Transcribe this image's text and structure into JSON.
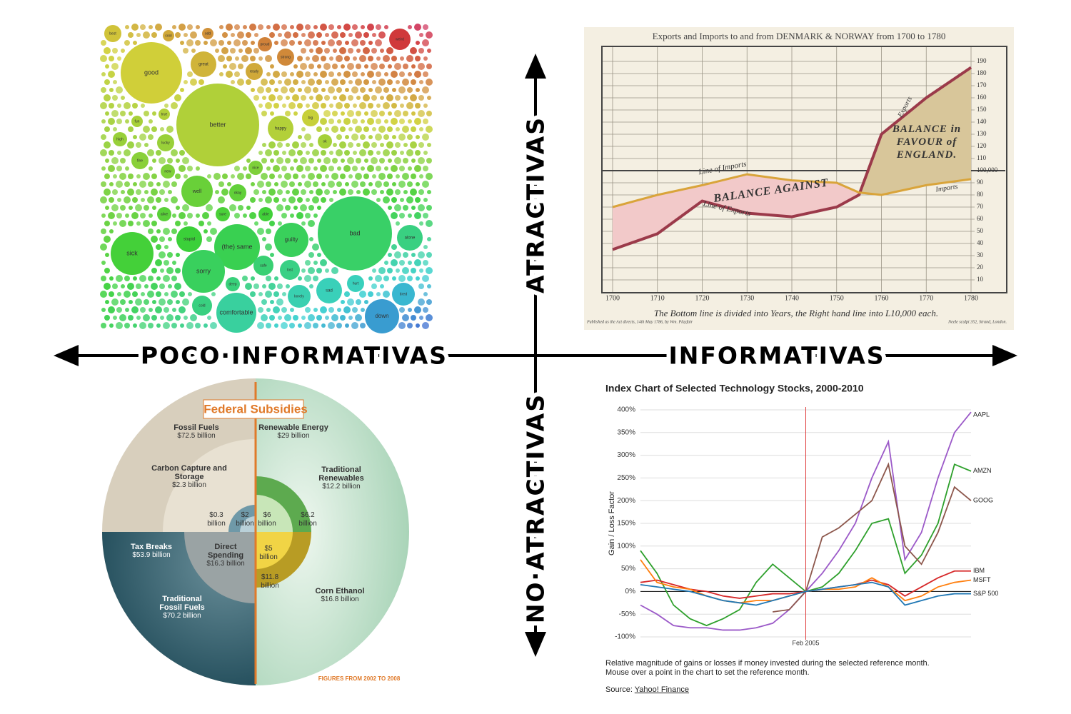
{
  "quadrant": {
    "x_left": "POCO·INFORMATIVAS",
    "x_right": "INFORMATIVAS",
    "y_top": "ATRACTIVAS",
    "y_bottom": "NO·ATRACTIVAS"
  },
  "bubble_chart": {
    "bubbles": [
      {
        "label": "best",
        "size": 36
      },
      {
        "label": "cool",
        "size": 16
      },
      {
        "label": "odd",
        "size": 16
      },
      {
        "label": "good",
        "size": 462
      },
      {
        "label": "great",
        "size": 81
      },
      {
        "label": "proud",
        "size": 25
      },
      {
        "label": "strong",
        "size": 36
      },
      {
        "label": "weird",
        "size": 56
      },
      {
        "label": "better",
        "size": 841
      },
      {
        "label": "ready",
        "size": 36
      },
      {
        "label": "happy",
        "size": 81
      },
      {
        "label": "big",
        "size": 36
      },
      {
        "label": "ok",
        "size": 25
      },
      {
        "label": "true",
        "size": 16
      },
      {
        "label": "fun",
        "size": 16
      },
      {
        "label": "high",
        "size": 25
      },
      {
        "label": "lucky",
        "size": 36
      },
      {
        "label": "fine",
        "size": 36
      },
      {
        "label": "new",
        "size": 25
      },
      {
        "label": "nice",
        "size": 25
      },
      {
        "label": "well",
        "size": 121
      },
      {
        "label": "okay",
        "size": 36
      },
      {
        "label": "sure",
        "size": 25
      },
      {
        "label": "able",
        "size": 25
      },
      {
        "label": "alive",
        "size": 25
      },
      {
        "label": "stupid",
        "size": 81
      },
      {
        "label": "(the) same",
        "size": 256
      },
      {
        "label": "sorry",
        "size": 225
      },
      {
        "label": "guilty",
        "size": 144
      },
      {
        "label": "bad",
        "size": 676
      },
      {
        "label": "sick",
        "size": 225
      },
      {
        "label": "alone",
        "size": 81
      },
      {
        "label": "safe",
        "size": 49
      },
      {
        "label": "lost",
        "size": 49
      },
      {
        "label": "deep",
        "size": 25
      },
      {
        "label": "hurt",
        "size": 36
      },
      {
        "label": "cold",
        "size": 49
      },
      {
        "label": "comfortable",
        "size": 196
      },
      {
        "label": "lonely",
        "size": 64
      },
      {
        "label": "sad",
        "size": 81
      },
      {
        "label": "tired",
        "size": 64
      },
      {
        "label": "down",
        "size": 144
      }
    ]
  },
  "playfair_chart": {
    "type": "line",
    "title": "Exports and Imports to and from DENMARK & NORWAY from 1700 to 1780",
    "x": [
      1700,
      1710,
      1720,
      1730,
      1740,
      1750,
      1755,
      1760,
      1770,
      1780
    ],
    "series": [
      {
        "name": "Exports",
        "color": "#9b3a4a",
        "values": [
          35,
          48,
          75,
          65,
          62,
          70,
          80,
          130,
          160,
          185
        ]
      },
      {
        "name": "Imports",
        "color": "#d9a43a",
        "values": [
          70,
          80,
          88,
          97,
          92,
          90,
          82,
          80,
          88,
          93
        ]
      }
    ],
    "xlim": [
      1700,
      1780
    ],
    "xticks": [
      1700,
      1710,
      1720,
      1730,
      1740,
      1750,
      1760,
      1770,
      1780
    ],
    "ylim": [
      0,
      200
    ],
    "yticks": [
      10,
      20,
      30,
      40,
      50,
      60,
      70,
      80,
      90,
      {
        "value": 100,
        "label": "100,000"
      },
      110,
      120,
      130,
      140,
      150,
      160,
      170,
      180,
      190
    ],
    "grid": true,
    "annotations": {
      "line_of_imports": "Line of Imports",
      "line_of_exports": "Line of Exports",
      "balance_against": "BALANCE AGAINST",
      "balance_favour": "BALANCE in FAVOUR of ENGLAND."
    },
    "footer": "The Bottom line is divided into Years, the Right hand line into L10,000 each.",
    "publisher_note": "Published as the Act directs, 14th May 1786, by Wm. Playfair",
    "engraver_note": "Neele sculpt 352, Strand, London."
  },
  "federal_subsidies": {
    "title": "Federal Subsidies",
    "footer": "FIGURES FROM 2002 TO 2008",
    "items": [
      {
        "label": "Fossil Fuels",
        "amount": "$72.5 billion"
      },
      {
        "label": "Carbon Capture and Storage",
        "amount": "$2.3 billion"
      },
      {
        "amount": "$0.3 billion"
      },
      {
        "amount": "$2 billion"
      },
      {
        "label": "Tax Breaks",
        "amount": "$53.9 billion"
      },
      {
        "label": "Direct Spending",
        "amount": "$16.3 billion"
      },
      {
        "label": "Traditional Fossil Fuels",
        "amount": "$70.2 billion"
      },
      {
        "label": "Renewable Energy",
        "amount": "$29 billion"
      },
      {
        "label": "Traditional Renewables",
        "amount": "$12.2 billion"
      },
      {
        "amount": "$6 billion"
      },
      {
        "amount": "$6.2 billion"
      },
      {
        "amount": "$5 billion"
      },
      {
        "amount": "$11.8 billion"
      },
      {
        "label": "Corn Ethanol",
        "amount": "$16.8 billion"
      }
    ]
  },
  "stock_chart": {
    "type": "line",
    "title": "Index Chart of Selected Technology Stocks, 2000-2010",
    "categories": [
      null,
      null,
      null,
      null,
      null,
      null,
      null,
      null,
      null,
      null,
      "Feb 2005",
      null,
      null,
      null,
      null,
      null,
      null,
      null,
      null,
      null,
      null
    ],
    "y_label": "Gain / Loss Factor",
    "ylim": [
      -100,
      400
    ],
    "yticks": [
      {
        "value": -100,
        "label": "-100%"
      },
      {
        "value": -50,
        "label": "-50%"
      },
      {
        "value": 0,
        "label": "0%"
      },
      {
        "value": 50,
        "label": "50%"
      },
      {
        "value": 100,
        "label": "100%"
      },
      {
        "value": 150,
        "label": "150%"
      },
      {
        "value": 200,
        "label": "200%"
      },
      {
        "value": 250,
        "label": "250%"
      },
      {
        "value": 300,
        "label": "300%"
      },
      {
        "value": 350,
        "label": "350%"
      },
      {
        "value": 400,
        "label": "400%"
      }
    ],
    "grid": true,
    "series": [
      {
        "name": "AAPL",
        "color": "#9b59c8",
        "values": [
          -30,
          -50,
          -75,
          -80,
          -80,
          -85,
          -85,
          -80,
          -70,
          -40,
          0,
          40,
          90,
          150,
          250,
          330,
          70,
          130,
          250,
          350,
          395
        ]
      },
      {
        "name": "AMZN",
        "color": "#2ea02c",
        "values": [
          90,
          40,
          -30,
          -60,
          -75,
          -60,
          -40,
          20,
          60,
          30,
          0,
          10,
          40,
          90,
          150,
          160,
          40,
          80,
          150,
          280,
          265
        ]
      },
      {
        "name": "GOOG",
        "color": "#8c564b",
        "values": [
          null,
          null,
          null,
          null,
          null,
          null,
          null,
          null,
          -45,
          -40,
          0,
          120,
          140,
          170,
          200,
          280,
          100,
          60,
          130,
          230,
          200
        ]
      },
      {
        "name": "IBM",
        "color": "#d62728",
        "values": [
          20,
          25,
          15,
          5,
          0,
          -10,
          -15,
          -10,
          -5,
          -5,
          0,
          5,
          10,
          15,
          25,
          15,
          -10,
          10,
          30,
          45,
          45
        ]
      },
      {
        "name": "MSFT",
        "color": "#ff7f0e",
        "values": [
          70,
          20,
          10,
          5,
          -10,
          -20,
          -25,
          -20,
          -20,
          -10,
          0,
          5,
          5,
          10,
          30,
          10,
          -20,
          -10,
          10,
          20,
          25
        ]
      },
      {
        "name": "S&P 500",
        "color": "#1f77b4",
        "values": [
          15,
          10,
          5,
          0,
          -10,
          -20,
          -25,
          -30,
          -20,
          -10,
          0,
          5,
          10,
          15,
          20,
          10,
          -30,
          -20,
          -10,
          -5,
          -5
        ]
      }
    ],
    "notes": [
      "Relative magnitude of gains or losses if money invested during the selected reference month.",
      "Mouse over a point in the chart to set the reference month."
    ],
    "source_label": "Source:",
    "source_link": "Yahoo! Finance"
  }
}
